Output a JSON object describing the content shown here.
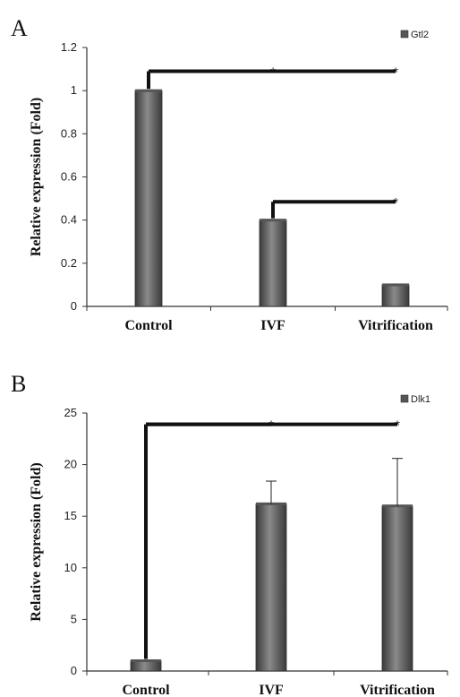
{
  "chart_data": [
    {
      "type": "bar",
      "panel": "A",
      "categories": [
        "Control",
        "IVF",
        "Vitrification"
      ],
      "series": [
        {
          "name": "Gtl2",
          "values": [
            1.0,
            0.4,
            0.1
          ],
          "errors": [
            0.0,
            0.0,
            0.0
          ]
        }
      ],
      "ylabel": "Relative expression (Fold)",
      "ylim": [
        0,
        1.2
      ],
      "yticks": [
        "0",
        "0.2",
        "0.4",
        "0.6",
        "0.8",
        "1",
        "1.2"
      ],
      "ytick_values": [
        0,
        0.2,
        0.4,
        0.6,
        0.8,
        1,
        1.2
      ],
      "grid": false,
      "legend": "top-right",
      "significance": [
        {
          "from": 0,
          "to": 1,
          "label": "*",
          "level": 1.09
        },
        {
          "from": 0,
          "to": 2,
          "label": "*",
          "level": 1.09
        },
        {
          "from": 1,
          "to": 2,
          "label": "*",
          "level": 0.485
        }
      ]
    },
    {
      "type": "bar",
      "panel": "B",
      "categories": [
        "Control",
        "IVF",
        "Vitrification"
      ],
      "series": [
        {
          "name": "Dlk1",
          "values": [
            1.0,
            16.2,
            16.0
          ],
          "errors": [
            0.0,
            2.2,
            4.6
          ]
        }
      ],
      "ylabel": "Relative expression (Fold)",
      "ylim": [
        0,
        25
      ],
      "yticks": [
        "0",
        "5",
        "10",
        "15",
        "20",
        "25"
      ],
      "ytick_values": [
        0,
        5,
        10,
        15,
        20,
        25
      ],
      "grid": false,
      "legend": "top-right",
      "significance": [
        {
          "from": 0,
          "to": 1,
          "label": "*",
          "level": 23.9
        },
        {
          "from": 0,
          "to": 2,
          "label": "*",
          "level": 23.9
        }
      ]
    }
  ]
}
